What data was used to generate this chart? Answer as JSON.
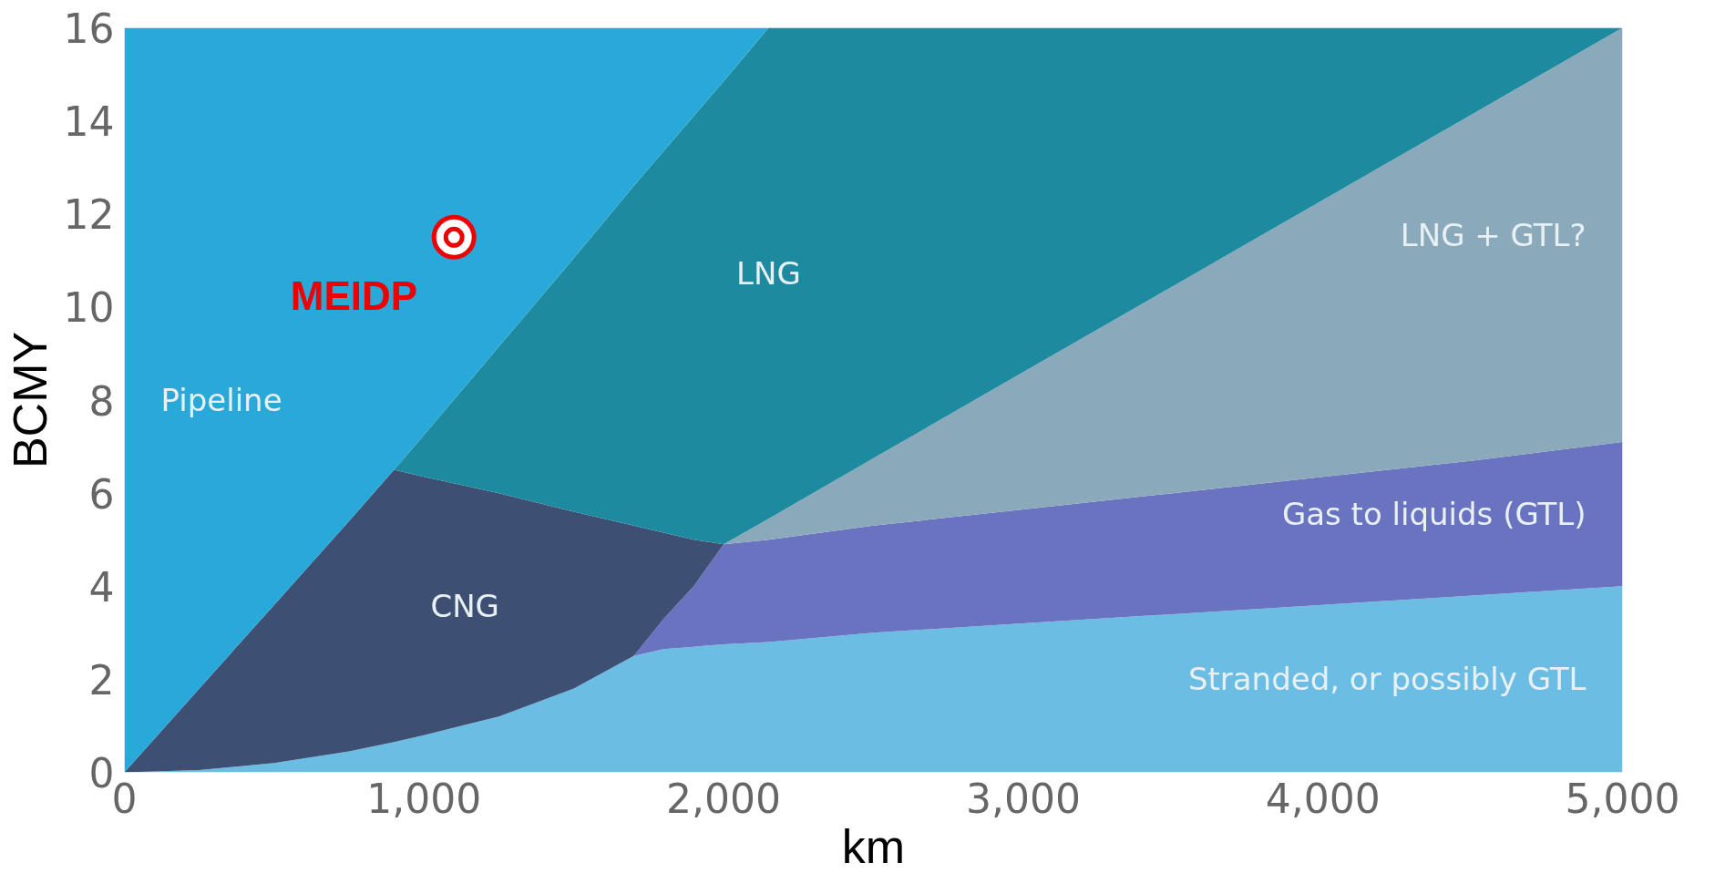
{
  "chart_data": {
    "type": "area",
    "stacked": true,
    "xlabel": "km",
    "ylabel": "BCMY",
    "x": [
      0,
      250,
      500,
      750,
      900,
      1000,
      1250,
      1500,
      1700,
      1800,
      1900,
      2000,
      2150,
      2500,
      3000,
      3500,
      4000,
      4500,
      5000
    ],
    "series": [
      {
        "name": "Stranded, or possibly GTL",
        "color": "#6cbde3",
        "values": [
          0,
          0.05,
          0.2,
          0.45,
          0.65,
          0.8,
          1.2,
          1.8,
          2.5,
          2.65,
          2.7,
          2.75,
          2.8,
          3.0,
          3.2,
          3.4,
          3.6,
          3.8,
          4.0
        ]
      },
      {
        "name": "Gas to liquids (GTL)",
        "color": "#6a73c0",
        "values": [
          null,
          null,
          null,
          null,
          null,
          null,
          null,
          null,
          0,
          0.65,
          1.3,
          2.15,
          2.2,
          2.3,
          2.45,
          2.6,
          2.75,
          2.9,
          3.1
        ]
      },
      {
        "name": "CNG",
        "color": "#3d4f73",
        "values": [
          0,
          1.75,
          3.4,
          4.95,
          5.85,
          5.55,
          4.8,
          3.8,
          2.8,
          1.85,
          1.0,
          0,
          null,
          null,
          null,
          null,
          null,
          null,
          null
        ]
      },
      {
        "name": "LNG + GTL?",
        "color": "#8aa9bb",
        "values": [
          null,
          null,
          null,
          null,
          null,
          null,
          null,
          null,
          null,
          null,
          null,
          0,
          0.45,
          1.45,
          2.95,
          4.45,
          5.95,
          7.45,
          8.9
        ]
      },
      {
        "name": "LNG",
        "color": "#1e8aa0",
        "values": [
          null,
          null,
          null,
          null,
          0,
          0.9,
          3.15,
          5.45,
          7.3,
          8.2,
          9.1,
          9.95,
          10.55,
          9.25,
          7.4,
          5.55,
          3.7,
          1.85,
          0
        ]
      },
      {
        "name": "Pipeline",
        "color": "#29a9d9",
        "values": [
          16,
          14.2,
          12.4,
          10.6,
          9.5,
          8.75,
          6.85,
          4.95,
          3.4,
          2.65,
          1.9,
          1.15,
          0,
          null,
          null,
          null,
          null,
          null,
          null
        ]
      }
    ],
    "xlim": [
      0,
      5000
    ],
    "ylim": [
      0,
      16
    ],
    "xticks": [
      0,
      {
        "value": 1000,
        "label": "1,000"
      },
      {
        "value": 2000,
        "label": "2,000"
      },
      {
        "value": 3000,
        "label": "3,000"
      },
      {
        "value": 4000,
        "label": "4,000"
      },
      {
        "value": 5000,
        "label": "5,000"
      }
    ],
    "yticks": [
      0,
      2,
      4,
      6,
      8,
      10,
      12,
      14,
      16
    ],
    "annotations": [
      {
        "text": "MEIDP",
        "x": 1100,
        "y": 11.5
      }
    ],
    "grid": false
  }
}
